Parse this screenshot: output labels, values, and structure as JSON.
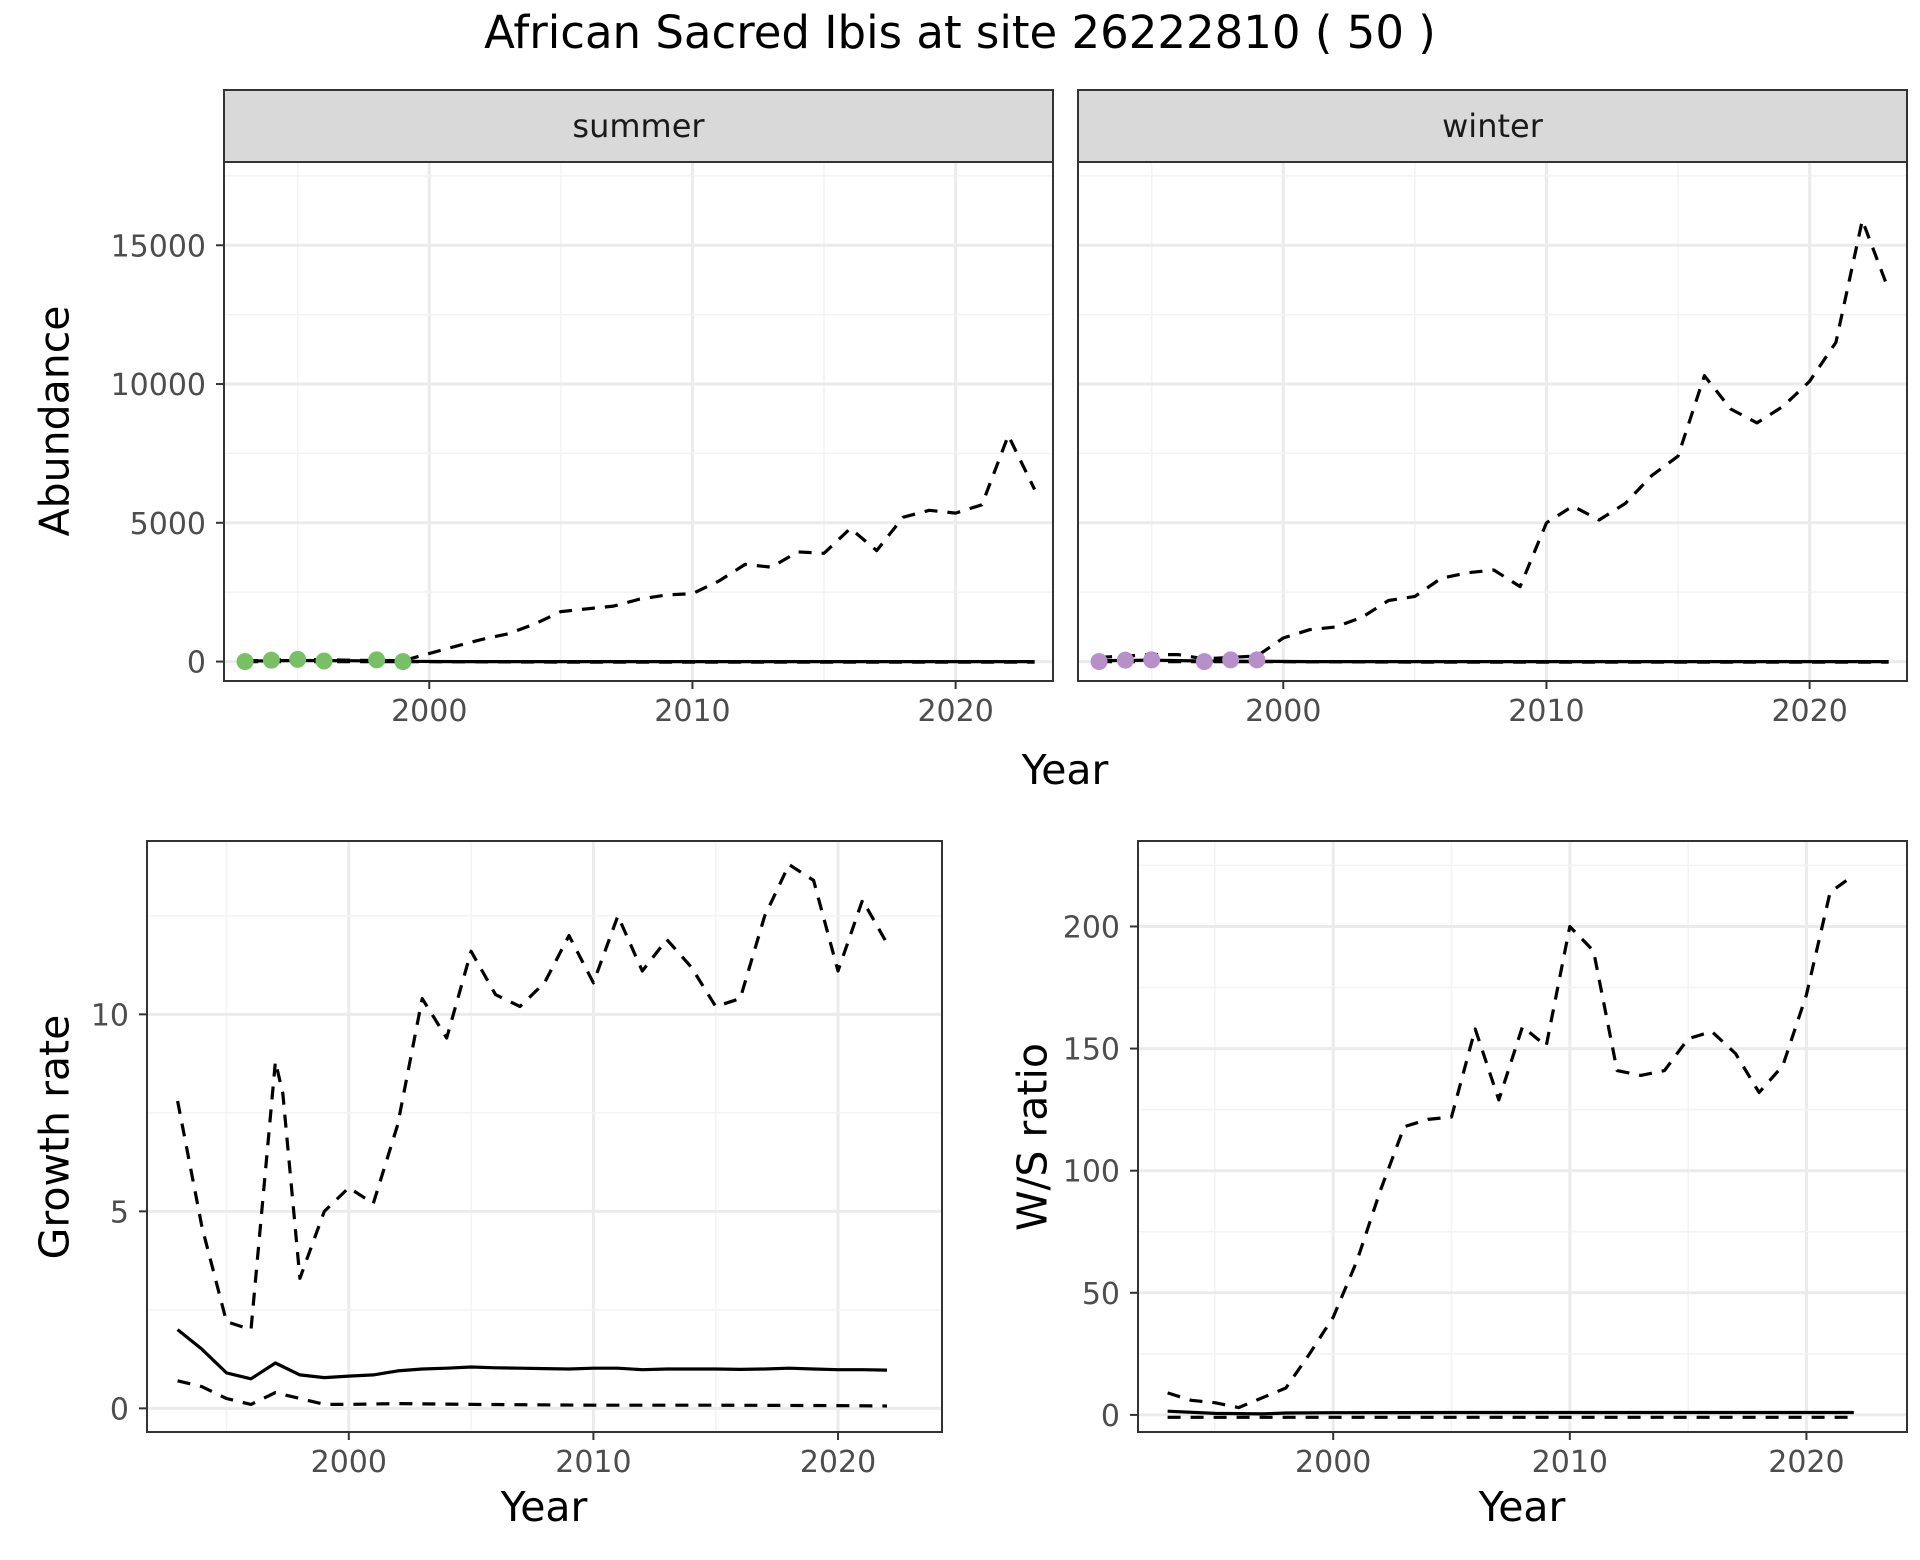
{
  "title": "African Sacred Ibis at site 26222810 ( 50 )",
  "colors": {
    "summer_points": "#77c065",
    "winter_points": "#b78fc9",
    "lines": "#000000",
    "strip_bg": "#d9d9d9",
    "grid_major": "#ebebeb",
    "grid_minor": "#f3f3f3"
  },
  "chart_data": [
    {
      "type": "line",
      "panel": "summer",
      "strip": "summer",
      "xlabel": "Year",
      "ylabel": "Abundance",
      "xlim": [
        1992.2,
        2023.7
      ],
      "ylim": [
        -700,
        18000
      ],
      "xticks": [
        2000,
        2010,
        2020
      ],
      "yticks": [
        0,
        5000,
        10000,
        15000
      ],
      "points": {
        "x": [
          1993,
          1994,
          1995,
          1996,
          1998,
          1999
        ],
        "y": [
          0,
          50,
          80,
          20,
          60,
          0
        ]
      },
      "series": [
        {
          "name": "",
          "style": "solid",
          "x": [
            1993,
            1995,
            1997,
            1999,
            2001,
            2005,
            2010,
            2015,
            2020,
            2023
          ],
          "y": [
            20,
            40,
            30,
            10,
            0,
            0,
            0,
            0,
            0,
            0
          ]
        },
        {
          "name": "",
          "style": "dashed",
          "x": [
            1993,
            1995,
            1997,
            1999,
            2001,
            2002,
            2003,
            2004,
            2005,
            2006,
            2007,
            2008,
            2009,
            2010,
            2011,
            2012,
            2013,
            2014,
            2015,
            2016,
            2017,
            2018,
            2019,
            2020,
            2021,
            2022,
            2023
          ],
          "y": [
            20,
            80,
            50,
            30,
            550,
            800,
            1000,
            1350,
            1800,
            1900,
            2000,
            2250,
            2400,
            2450,
            2900,
            3500,
            3400,
            3950,
            3900,
            4800,
            4000,
            5200,
            5450,
            5350,
            5650,
            8150,
            6200
          ]
        },
        {
          "name": "",
          "style": "dashed",
          "x": [
            1993,
            1995,
            1997,
            1999,
            2005,
            2010,
            2015,
            2020,
            2023
          ],
          "y": [
            0,
            0,
            0,
            0,
            -20,
            -20,
            -20,
            -20,
            -20
          ]
        }
      ]
    },
    {
      "type": "line",
      "panel": "winter",
      "strip": "winter",
      "xlabel": "Year",
      "ylabel": "",
      "xlim": [
        1992.2,
        2023.7
      ],
      "ylim": [
        -700,
        18000
      ],
      "xticks": [
        2000,
        2010,
        2020
      ],
      "yticks": [
        0,
        5000,
        10000,
        15000
      ],
      "points": {
        "x": [
          1993,
          1994,
          1995,
          1997,
          1998,
          1999
        ],
        "y": [
          0,
          50,
          60,
          0,
          60,
          60
        ]
      },
      "series": [
        {
          "name": "",
          "style": "solid",
          "x": [
            1993,
            1995,
            1997,
            1999,
            2001,
            2005,
            2010,
            2015,
            2020,
            2023
          ],
          "y": [
            30,
            50,
            20,
            10,
            0,
            0,
            0,
            0,
            0,
            0
          ]
        },
        {
          "name": "",
          "style": "dashed",
          "x": [
            1993,
            1995,
            1996,
            1997,
            1998,
            1999,
            2000,
            2001,
            2002,
            2003,
            2004,
            2005,
            2006,
            2007,
            2008,
            2009,
            2010,
            2011,
            2012,
            2013,
            2014,
            2015,
            2016,
            2017,
            2018,
            2019,
            2020,
            2021,
            2022,
            2023
          ],
          "y": [
            150,
            250,
            250,
            100,
            150,
            200,
            850,
            1150,
            1250,
            1600,
            2200,
            2350,
            3000,
            3200,
            3300,
            2700,
            5000,
            5600,
            5100,
            5700,
            6700,
            7400,
            10300,
            9100,
            8600,
            9200,
            10100,
            11500,
            15900,
            13400
          ]
        },
        {
          "name": "",
          "style": "dashed",
          "x": [
            1993,
            1995,
            1997,
            1999,
            2005,
            2010,
            2015,
            2020,
            2023
          ],
          "y": [
            0,
            0,
            0,
            0,
            -20,
            -20,
            -20,
            -20,
            -20
          ]
        }
      ]
    },
    {
      "type": "line",
      "panel": "growth",
      "xlabel": "Year",
      "ylabel": "Growth rate",
      "xlim": [
        1991.75,
        2024.25
      ],
      "ylim": [
        -0.6,
        14.4
      ],
      "xticks": [
        2000,
        2010,
        2020
      ],
      "yticks": [
        0,
        5,
        10
      ],
      "series": [
        {
          "name": "",
          "style": "solid",
          "x": [
            1993,
            1994,
            1995,
            1996,
            1997,
            1998,
            1999,
            2000,
            2001,
            2002,
            2003,
            2004,
            2005,
            2006,
            2007,
            2008,
            2009,
            2010,
            2011,
            2012,
            2013,
            2014,
            2015,
            2016,
            2017,
            2018,
            2019,
            2020,
            2021,
            2022
          ],
          "y": [
            2.0,
            1.5,
            0.9,
            0.75,
            1.15,
            0.85,
            0.78,
            0.82,
            0.85,
            0.95,
            1.0,
            1.02,
            1.05,
            1.03,
            1.02,
            1.01,
            1.0,
            1.02,
            1.02,
            0.98,
            1.0,
            1.0,
            1.0,
            0.99,
            1.0,
            1.02,
            1.0,
            0.98,
            0.98,
            0.97
          ]
        },
        {
          "name": "",
          "style": "dashed",
          "x": [
            1993,
            1994,
            1995,
            1996,
            1997,
            1997.3,
            1998,
            1999,
            2000,
            2001,
            2002,
            2003,
            2004,
            2005,
            2006,
            2007,
            2008,
            2009,
            2010,
            2011,
            2012,
            2013,
            2014,
            2015,
            2016,
            2017,
            2018,
            2019,
            2020,
            2021,
            2022
          ],
          "y": [
            7.8,
            4.6,
            2.2,
            2.0,
            8.8,
            8.0,
            3.3,
            5.0,
            5.6,
            5.2,
            7.2,
            10.4,
            9.4,
            11.6,
            10.5,
            10.2,
            10.8,
            12.0,
            10.8,
            12.5,
            11.1,
            11.9,
            11.2,
            10.2,
            10.4,
            12.5,
            13.8,
            13.4,
            11.1,
            12.9,
            11.8
          ]
        },
        {
          "name": "",
          "style": "dashed",
          "x": [
            1993,
            1994,
            1995,
            1996,
            1997,
            1998,
            1999,
            2000,
            2002,
            2005,
            2010,
            2015,
            2020,
            2022
          ],
          "y": [
            0.7,
            0.55,
            0.25,
            0.1,
            0.4,
            0.25,
            0.1,
            0.1,
            0.12,
            0.1,
            0.08,
            0.08,
            0.07,
            0.06
          ]
        }
      ]
    },
    {
      "type": "line",
      "panel": "ratio",
      "xlabel": "Year",
      "ylabel": "W/S ratio",
      "xlim": [
        1991.75,
        2024.25
      ],
      "ylim": [
        -7,
        235
      ],
      "xticks": [
        2000,
        2010,
        2020
      ],
      "yticks": [
        0,
        50,
        100,
        150,
        200
      ],
      "series": [
        {
          "name": "",
          "style": "solid",
          "x": [
            1993,
            1995,
            1997,
            1998,
            2000,
            2005,
            2010,
            2015,
            2020,
            2022
          ],
          "y": [
            1.5,
            0.6,
            0.4,
            0.8,
            0.9,
            1.0,
            1.0,
            1.0,
            1.0,
            1.0
          ]
        },
        {
          "name": "",
          "style": "dashed",
          "x": [
            1993,
            1994,
            1995,
            1996,
            1997,
            1998,
            1999,
            2000,
            2001,
            2002,
            2003,
            2004,
            2005,
            2006,
            2007,
            2008,
            2009,
            2010,
            2011,
            2012,
            2013,
            2014,
            2015,
            2016,
            2017,
            2018,
            2019,
            2020,
            2021,
            2022
          ],
          "y": [
            9,
            6,
            5,
            3,
            7,
            11,
            25,
            40,
            63,
            92,
            118,
            121,
            122,
            158,
            129,
            159,
            151,
            200,
            190,
            141,
            139,
            141,
            154,
            157,
            148,
            132,
            143,
            172,
            214,
            221
          ]
        },
        {
          "name": "",
          "style": "dashed",
          "x": [
            1993,
            1995,
            1997,
            2000,
            2005,
            2010,
            2015,
            2020,
            2022
          ],
          "y": [
            -1,
            -1,
            -1,
            -1,
            -1,
            -1,
            -1,
            -1,
            -1
          ]
        }
      ]
    }
  ]
}
